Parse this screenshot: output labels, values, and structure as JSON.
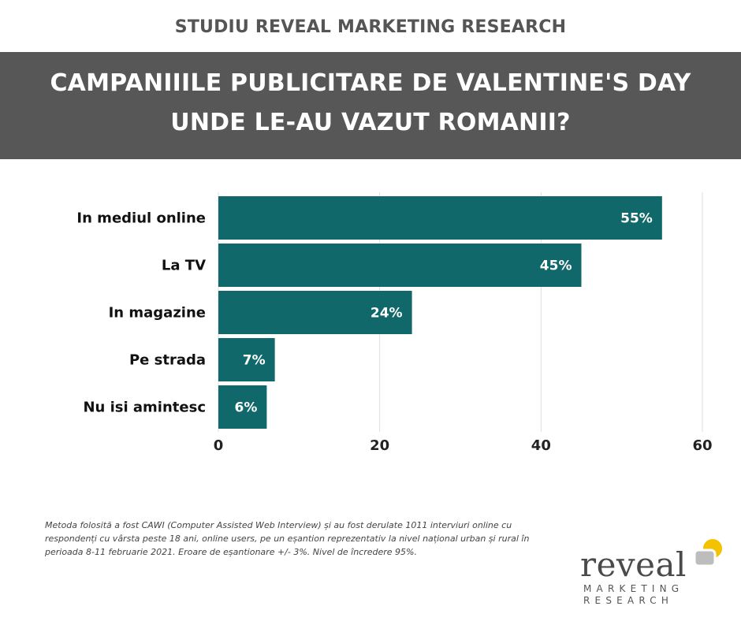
{
  "header": {
    "study": "STUDIU REVEAL MARKETING RESEARCH",
    "title_line1": "CAMPANIIILE PUBLICITARE DE VALENTINE'S DAY",
    "title_line2": "UNDE LE-AU VAZUT ROMANII?"
  },
  "chart_data": {
    "type": "bar",
    "orientation": "horizontal",
    "categories": [
      "In mediul online",
      "La TV",
      "In magazine",
      "Pe strada",
      "Nu isi amintesc"
    ],
    "values": [
      55,
      45,
      24,
      7,
      6
    ],
    "value_labels": [
      "55%",
      "45%",
      "24%",
      "7%",
      "6%"
    ],
    "xlim": [
      0,
      60
    ],
    "xticks": [
      "0",
      "20",
      "40",
      "60"
    ],
    "grid": "vertical",
    "bar_color": "#11686a"
  },
  "footnote": "Metoda folosită a fost CAWI (Computer Assisted Web Interview) și au fost derulate 1011 interviuri online cu respondenți cu vârsta peste 18 ani, online users, pe un eșantion reprezentativ la nivel național urban și rural în perioada 8-11 februarie 2021. Eroare de eșantionare +/- 3%. Nivel de încredere 95%.",
  "logo": {
    "word": "reveal",
    "line1": "MARKETING",
    "line2": "RESEARCH",
    "accent_color": "#f3c200",
    "mark_color": "#bdbdbd"
  }
}
